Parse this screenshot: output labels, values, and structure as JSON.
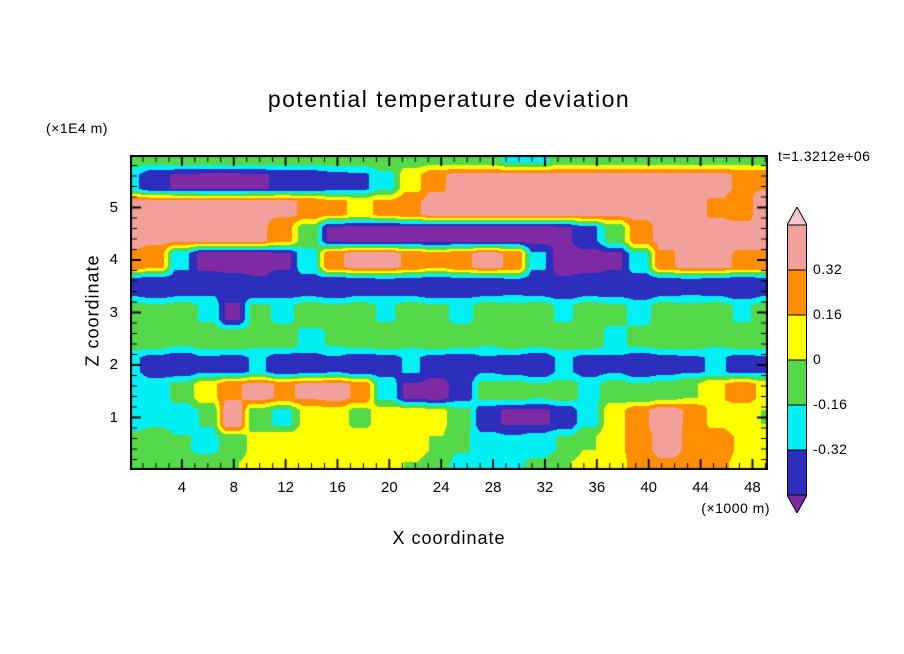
{
  "page": {
    "background": "#ffffff"
  },
  "chart_data": {
    "type": "heatmap",
    "subtype": "filled-contour",
    "title": "potential temperature deviation",
    "time_label": "t=1.3212e+06",
    "xlabel": "X coordinate",
    "x_unit_label": "(×1000 m)",
    "ylabel": "Z coordinate",
    "y_unit_label": "(×1E4 m)",
    "x_range": [
      0,
      49.2
    ],
    "z_range": [
      0,
      6
    ],
    "x_ticks": [
      4,
      8,
      12,
      16,
      20,
      24,
      28,
      32,
      36,
      40,
      44,
      48
    ],
    "x_minor_step": 1,
    "z_ticks": [
      1,
      2,
      3,
      4,
      5
    ],
    "z_minor_step": 0.2,
    "grid": false,
    "legend_position": "right-colorbar",
    "contour_levels": [
      -0.48,
      -0.32,
      -0.16,
      0,
      0.16,
      0.32,
      0.48
    ],
    "colorbar_tick_labels": [
      "0.32",
      "0.16",
      "0",
      "-0.16",
      "-0.32"
    ],
    "palette_low_to_high": [
      "#7F2BA3",
      "#2D2DBE",
      "#00F0F5",
      "#55D94A",
      "#FFFF00",
      "#FF8E05",
      "#F2A09A",
      "#F6C8D2"
    ],
    "field": {
      "x": [
        0,
        2,
        4,
        6,
        8,
        10,
        12,
        14,
        16,
        18,
        20,
        22,
        24,
        26,
        28,
        30,
        32,
        34,
        36,
        38,
        40,
        42,
        44,
        46,
        48,
        50
      ],
      "z": [
        6.0,
        5.5,
        5.0,
        4.5,
        4.0,
        3.5,
        3.0,
        2.5,
        2.0,
        1.5,
        1.0,
        0.5,
        0.0
      ],
      "values": [
        [
          -0.08,
          -0.08,
          -0.08,
          -0.08,
          -0.08,
          -0.08,
          -0.08,
          -0.08,
          -0.08,
          -0.08,
          -0.08,
          -0.08,
          -0.08,
          -0.08,
          -0.08,
          -0.2,
          -0.2,
          -0.08,
          -0.08,
          -0.08,
          -0.08,
          -0.08,
          -0.08,
          -0.08,
          -0.08,
          -0.08
        ],
        [
          -0.3,
          -0.45,
          -0.5,
          -0.52,
          -0.52,
          -0.5,
          -0.45,
          -0.45,
          -0.4,
          -0.35,
          -0.2,
          0.1,
          0.3,
          0.38,
          0.38,
          0.38,
          0.38,
          0.38,
          0.38,
          0.38,
          0.38,
          0.38,
          0.38,
          0.38,
          0.3,
          0.3
        ],
        [
          0.38,
          0.38,
          0.38,
          0.38,
          0.38,
          0.38,
          0.35,
          0.3,
          0.2,
          0.12,
          0.2,
          0.3,
          0.38,
          0.38,
          0.38,
          0.38,
          0.38,
          0.38,
          0.38,
          0.38,
          0.38,
          0.38,
          0.38,
          0.3,
          0.25,
          0.45
        ],
        [
          0.38,
          0.38,
          0.38,
          0.38,
          0.38,
          0.35,
          0.2,
          -0.1,
          -0.5,
          -0.55,
          -0.55,
          -0.55,
          -0.55,
          -0.55,
          -0.55,
          -0.55,
          -0.55,
          -0.5,
          -0.35,
          -0.1,
          0.25,
          0.38,
          0.38,
          0.38,
          0.38,
          0.38
        ],
        [
          0.3,
          0.2,
          -0.3,
          -0.55,
          -0.55,
          -0.55,
          -0.5,
          -0.2,
          0.3,
          0.38,
          0.38,
          0.3,
          0.2,
          0.3,
          0.38,
          0.3,
          -0.3,
          -0.55,
          -0.55,
          -0.5,
          -0.2,
          0.3,
          0.38,
          0.38,
          0.3,
          0.3
        ],
        [
          -0.4,
          -0.45,
          -0.4,
          -0.35,
          -0.4,
          -0.45,
          -0.4,
          -0.4,
          -0.45,
          -0.4,
          -0.35,
          -0.4,
          -0.45,
          -0.4,
          -0.4,
          -0.35,
          -0.4,
          -0.45,
          -0.4,
          -0.4,
          -0.45,
          -0.4,
          -0.35,
          -0.4,
          -0.45,
          -0.4
        ],
        [
          -0.08,
          -0.12,
          -0.08,
          -0.18,
          -0.5,
          -0.12,
          -0.2,
          -0.08,
          -0.12,
          -0.08,
          -0.18,
          -0.08,
          -0.12,
          -0.2,
          -0.08,
          -0.12,
          -0.08,
          -0.18,
          -0.08,
          -0.12,
          -0.2,
          -0.08,
          -0.12,
          -0.08,
          -0.18,
          -0.08
        ],
        [
          -0.08,
          -0.08,
          -0.15,
          -0.08,
          -0.08,
          -0.12,
          -0.08,
          -0.2,
          -0.15,
          -0.08,
          -0.08,
          -0.12,
          -0.08,
          -0.08,
          -0.15,
          -0.08,
          -0.12,
          -0.08,
          -0.08,
          -0.2,
          -0.12,
          -0.08,
          -0.08,
          -0.15,
          -0.08,
          -0.08
        ],
        [
          -0.3,
          -0.4,
          -0.45,
          -0.35,
          -0.4,
          -0.3,
          -0.45,
          -0.4,
          -0.35,
          -0.45,
          -0.4,
          -0.3,
          -0.4,
          -0.45,
          -0.35,
          -0.4,
          -0.45,
          -0.3,
          -0.4,
          -0.35,
          -0.45,
          -0.4,
          -0.35,
          -0.3,
          -0.4,
          -0.35
        ],
        [
          -0.2,
          -0.24,
          -0.1,
          0.1,
          0.3,
          0.38,
          0.3,
          0.35,
          0.38,
          0.3,
          -0.2,
          -0.5,
          -0.55,
          -0.4,
          -0.1,
          -0.08,
          -0.15,
          -0.08,
          -0.2,
          -0.08,
          -0.15,
          -0.08,
          0.0,
          0.15,
          0.25,
          0.1
        ],
        [
          -0.24,
          -0.2,
          -0.24,
          -0.15,
          0.45,
          -0.1,
          -0.2,
          0.05,
          0.1,
          -0.05,
          0.08,
          0.12,
          0.05,
          -0.1,
          -0.45,
          -0.5,
          -0.5,
          -0.45,
          -0.2,
          0.1,
          0.3,
          0.45,
          0.3,
          0.12,
          0.05,
          0.0
        ],
        [
          -0.1,
          -0.05,
          -0.15,
          -0.2,
          -0.1,
          0.05,
          0.1,
          0.08,
          0.05,
          0.1,
          0.12,
          0.08,
          0.0,
          -0.15,
          -0.25,
          -0.3,
          -0.25,
          -0.15,
          0.0,
          0.12,
          0.25,
          0.4,
          0.3,
          0.25,
          0.15,
          0.1
        ],
        [
          -0.08,
          -0.05,
          -0.1,
          -0.08,
          0.0,
          0.08,
          0.1,
          0.05,
          0.08,
          0.1,
          0.05,
          0.0,
          -0.1,
          -0.2,
          -0.25,
          -0.2,
          -0.1,
          0.0,
          0.08,
          0.12,
          0.2,
          0.28,
          0.25,
          0.2,
          0.12,
          0.08
        ]
      ]
    }
  }
}
